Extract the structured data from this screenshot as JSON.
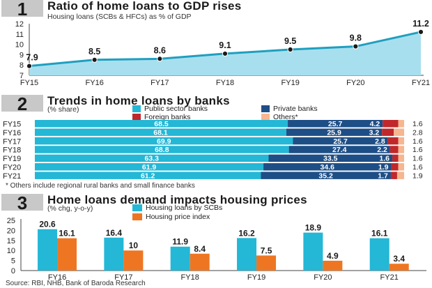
{
  "colors": {
    "teal": "#24b7d6",
    "navy": "#1e4e86",
    "red": "#c0282b",
    "peach": "#f6b690",
    "orange": "#ee7623",
    "line_fill": "#a8dfee",
    "line_stroke": "#1f9fbf",
    "header_box": "#c8c8c8"
  },
  "section1": {
    "number": "1",
    "title": "Ratio of home loans to GDP rises",
    "subtitle": "Housing loans (SCBs & HFCs) as % of GDP"
  },
  "section2": {
    "number": "2",
    "title": "Trends in home loans by banks",
    "subtitle": "(% share)",
    "legend": {
      "public": "Public sector banks",
      "private": "Private banks",
      "foreign": "Foreign banks",
      "others": "Others*"
    },
    "footnote": "* Others include regional rural banks and small finance banks"
  },
  "section3": {
    "number": "3",
    "title": "Home loans demand impacts housing prices",
    "subtitle": "(% chg, y-o-y)",
    "legend": {
      "loans": "Housing loans by SCBs",
      "prices": "Housing price index"
    }
  },
  "source": "Source: RBI, NHB, Bank of Baroda Research",
  "chart_data": [
    {
      "type": "area",
      "title": "Ratio of home loans to GDP rises",
      "subtitle": "Housing loans (SCBs & HFCs) as % of GDP",
      "x": [
        "FY15",
        "FY16",
        "FY17",
        "FY18",
        "FY19",
        "FY20",
        "FY21"
      ],
      "values": [
        7.9,
        8.5,
        8.6,
        9.1,
        9.5,
        9.8,
        11.2
      ],
      "yticks": [
        7,
        8,
        9,
        10,
        11,
        12
      ],
      "ylim": [
        7,
        12
      ],
      "grid": false
    },
    {
      "type": "bar",
      "orientation": "horizontal-stacked",
      "title": "Trends in home loans by banks",
      "subtitle": "(% share)",
      "categories": [
        "FY15",
        "FY16",
        "FY17",
        "FY18",
        "FY19",
        "FY20",
        "FY21"
      ],
      "series": [
        {
          "name": "Public sector banks",
          "values": [
            68.5,
            68.1,
            69.9,
            68.8,
            63.3,
            61.9,
            61.2
          ]
        },
        {
          "name": "Private banks",
          "values": [
            25.7,
            25.9,
            25.7,
            27.4,
            33.5,
            34.6,
            35.2
          ]
        },
        {
          "name": "Foreign banks",
          "values": [
            4.2,
            3.2,
            2.8,
            2.2,
            1.6,
            1.9,
            1.7
          ]
        },
        {
          "name": "Others*",
          "values": [
            1.6,
            2.8,
            1.6,
            1.6,
            1.6,
            1.6,
            1.9
          ]
        }
      ],
      "xlim": [
        0,
        100
      ]
    },
    {
      "type": "bar",
      "title": "Home loans demand impacts housing prices",
      "subtitle": "(% chg, y-o-y)",
      "categories": [
        "FY16",
        "FY17",
        "FY18",
        "FY19",
        "FY20",
        "FY21"
      ],
      "series": [
        {
          "name": "Housing loans by SCBs",
          "values": [
            20.6,
            16.4,
            11.9,
            16.2,
            18.9,
            16.1
          ]
        },
        {
          "name": "Housing price index",
          "values": [
            16.1,
            10,
            8.4,
            7.5,
            4.9,
            3.4
          ]
        }
      ],
      "yticks": [
        0,
        5,
        10,
        15,
        20,
        25
      ],
      "ylim": [
        0,
        25
      ],
      "grid": false
    }
  ]
}
